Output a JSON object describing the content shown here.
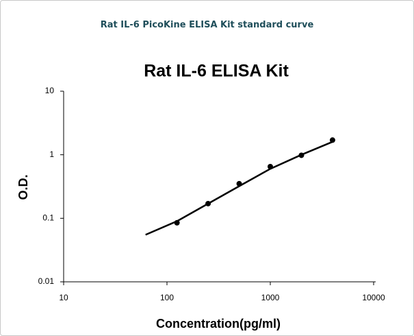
{
  "header": {
    "title": "Rat IL-6 PicoKine ELISA Kit standard curve"
  },
  "chart_data": {
    "type": "scatter",
    "title": "Rat IL-6 ELISA Kit",
    "x_label": "Concentration(pg/ml)",
    "y_label": "O.D.",
    "x_scale": "log",
    "y_scale": "log",
    "xlim": [
      10,
      10000
    ],
    "ylim": [
      0.01,
      10
    ],
    "xticks": [
      10,
      100,
      1000,
      10000
    ],
    "yticks": [
      0.01,
      0.1,
      1,
      10
    ],
    "series": [
      {
        "color": "#000000",
        "x": [
          125,
          250,
          500,
          1000,
          2000,
          4000
        ],
        "values": [
          0.085,
          0.17,
          0.35,
          0.65,
          0.98,
          1.7
        ]
      }
    ],
    "curve": {
      "color": "#000000",
      "x": [
        62,
        125,
        250,
        500,
        1000,
        2000,
        4000
      ],
      "values": [
        0.055,
        0.09,
        0.17,
        0.32,
        0.6,
        1.0,
        1.6
      ]
    }
  }
}
